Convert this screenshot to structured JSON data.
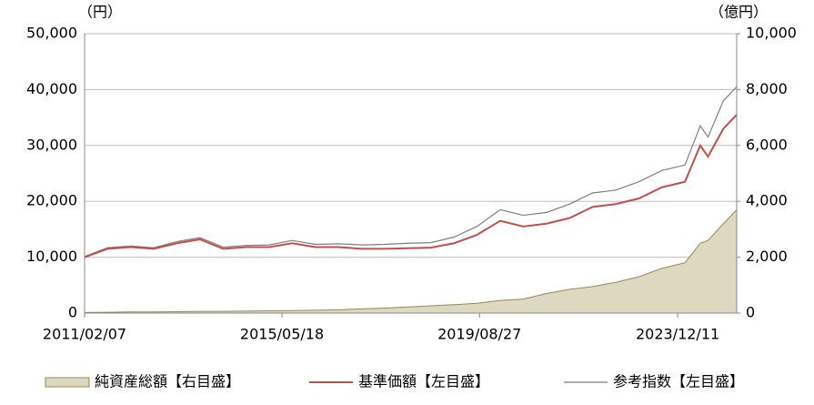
{
  "chart_data": {
    "type": "line",
    "y_label": "（円）",
    "y2_label": "（億円）",
    "x": [
      "2011/02/07",
      "2011/08/07",
      "2012/02/07",
      "2012/08/07",
      "2013/02/07",
      "2013/08/07",
      "2014/02/07",
      "2014/08/07",
      "2015/02/07",
      "2015/08/07",
      "2016/02/07",
      "2016/08/07",
      "2017/02/07",
      "2017/08/07",
      "2018/02/07",
      "2018/08/07",
      "2019/02/07",
      "2019/08/07",
      "2020/02/07",
      "2020/08/07",
      "2021/02/07",
      "2021/08/07",
      "2022/02/07",
      "2022/08/07",
      "2023/02/07",
      "2023/08/07",
      "2024/02/07",
      "2024/06/07",
      "2024/08/07",
      "2024/12/07",
      "2025/03/22"
    ],
    "xlim": [
      "2011/02/07",
      "2025/03/22"
    ],
    "xticks": [
      "2011/02/07",
      "2015/05/18",
      "2019/08/27",
      "2023/12/11"
    ],
    "ylim": [
      0,
      50000
    ],
    "yticks": [
      0,
      {
        "value": 10000,
        "label": "10,000"
      },
      {
        "value": 20000,
        "label": "20,000"
      },
      {
        "value": 30000,
        "label": "30,000"
      },
      {
        "value": 40000,
        "label": "40,000"
      },
      {
        "value": 50000,
        "label": "50,000"
      }
    ],
    "y2lim": [
      0,
      10000
    ],
    "y2ticks": [
      0,
      {
        "value": 2000,
        "label": "2,000"
      },
      {
        "value": 4000,
        "label": "4,000"
      },
      {
        "value": 6000,
        "label": "6,000"
      },
      {
        "value": 8000,
        "label": "8,000"
      },
      {
        "value": 10000,
        "label": "10,000"
      }
    ],
    "grid": true,
    "series": [
      {
        "name": "純資産総額【右目盛】",
        "kind": "area",
        "axis": "y2",
        "color": "#ddd8c0",
        "edge": "#948a54",
        "values": [
          20,
          30,
          40,
          40,
          50,
          60,
          60,
          70,
          80,
          90,
          100,
          120,
          150,
          180,
          220,
          260,
          300,
          350,
          450,
          500,
          700,
          850,
          950,
          1100,
          1300,
          1600,
          1800,
          2500,
          2600,
          3200,
          3700
        ]
      },
      {
        "name": "基準価額【左目盛】",
        "kind": "line",
        "color": "#c0504d",
        "values": [
          10000,
          11500,
          11800,
          11500,
          12500,
          13200,
          11500,
          11800,
          11800,
          12500,
          11800,
          11800,
          11500,
          11500,
          11600,
          11700,
          12500,
          14000,
          16500,
          15500,
          16000,
          17000,
          19000,
          19500,
          20500,
          22500,
          23500,
          30000,
          28000,
          33000,
          35500
        ]
      },
      {
        "name": "参考指数【左目盛】",
        "kind": "line",
        "color": "#7f7f7f",
        "values": [
          10100,
          11700,
          12000,
          11700,
          12800,
          13500,
          11800,
          12100,
          12200,
          13000,
          12300,
          12400,
          12200,
          12300,
          12500,
          12600,
          13600,
          15500,
          18500,
          17500,
          18000,
          19500,
          21500,
          22000,
          23500,
          25500,
          26500,
          33500,
          31500,
          38000,
          40500
        ]
      }
    ]
  }
}
